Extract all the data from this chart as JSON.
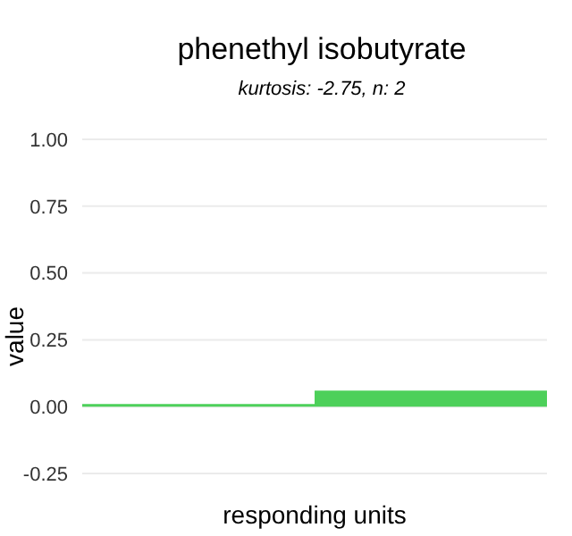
{
  "chart_data": {
    "type": "bar",
    "title": "phenethyl isobutyrate",
    "subtitle": "kurtosis: -2.75, n: 2",
    "xlabel": "responding units",
    "ylabel": "value",
    "categories": [
      null,
      null
    ],
    "values": [
      0.01,
      0.06
    ],
    "color": "#4dd05a",
    "ylim": [
      -0.25,
      1
    ],
    "yticks": [
      -0.25,
      {
        "value": 0,
        "label": "0.00"
      },
      0.25,
      {
        "value": 0.5,
        "label": "0.50"
      },
      0.75,
      {
        "value": 1,
        "label": "1.00"
      }
    ],
    "grid": "y"
  }
}
